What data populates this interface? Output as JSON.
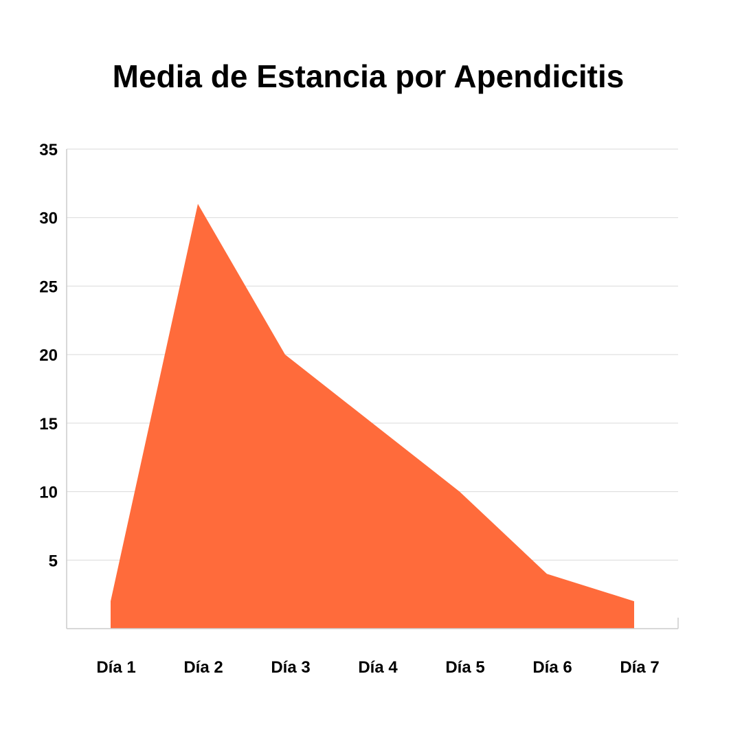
{
  "chart_data": {
    "type": "area",
    "title": "Media de Estancia por Apendicitis",
    "categories": [
      "Día 1",
      "Día 2",
      "Día 3",
      "Día 4",
      "Día 5",
      "Día 6",
      "Día 7"
    ],
    "values": [
      2,
      31,
      20,
      15,
      10,
      4,
      2
    ],
    "ylim": [
      0,
      35
    ],
    "yticks": [
      5,
      10,
      15,
      20,
      25,
      30,
      35
    ],
    "grid": true,
    "legend": "none",
    "colors": {
      "area": "#ff6b3b",
      "grid": "#d9d9d9",
      "axis": "#cccccc",
      "text": "#000000"
    }
  }
}
